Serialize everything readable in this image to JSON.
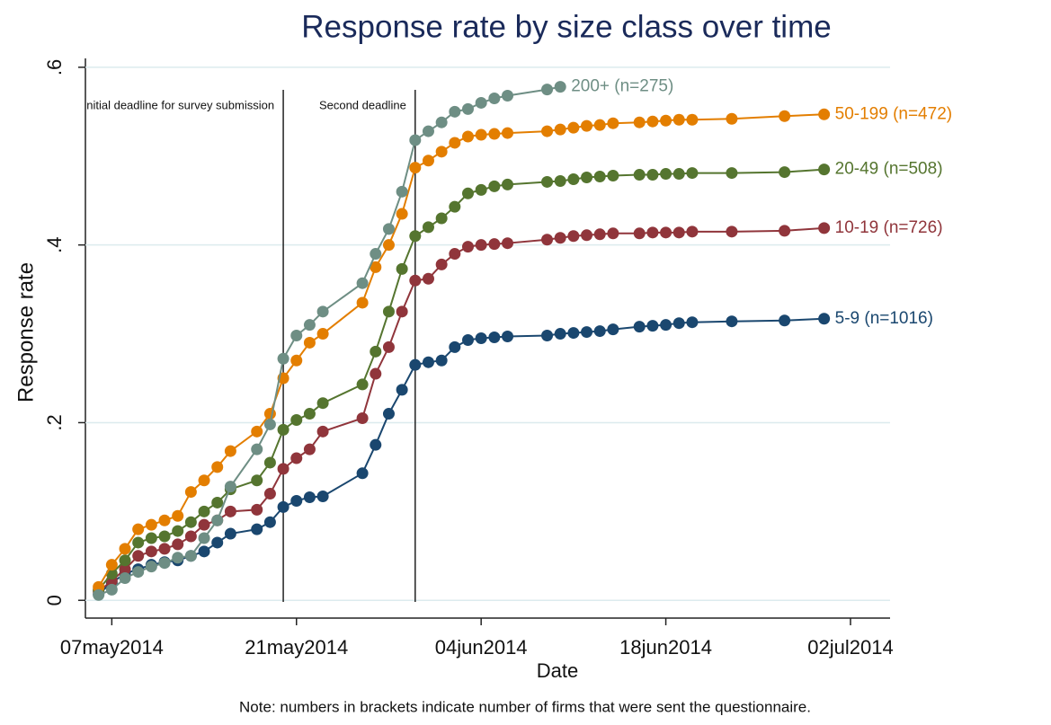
{
  "chart_data": {
    "type": "line",
    "title": "Response rate by size class over time",
    "xlabel": "Date",
    "ylabel": "Response rate",
    "note": "Note: numbers in brackets indicate number of firms that were sent the questionnaire.",
    "xlim": [
      "2014-05-05",
      "2014-07-05"
    ],
    "xticks": [
      {
        "value": "2014-05-07",
        "label": "07may2014"
      },
      {
        "value": "2014-05-21",
        "label": "21may2014"
      },
      {
        "value": "2014-06-04",
        "label": "04jun2014"
      },
      {
        "value": "2014-06-18",
        "label": "18jun2014"
      },
      {
        "value": "2014-07-02",
        "label": "02jul2014"
      }
    ],
    "ylim": [
      -0.02,
      0.61
    ],
    "yticks": [
      0,
      {
        "value": 0.2,
        "label": ".2"
      },
      {
        "value": 0.4,
        "label": ".4"
      },
      {
        "value": 0.6,
        "label": ".6"
      }
    ],
    "grid": true,
    "vlines": [
      {
        "x": "2014-05-20",
        "label": "nitial deadline for survey submission"
      },
      {
        "x": "2014-05-30",
        "label": "Second deadline"
      }
    ],
    "series": [
      {
        "name": "5-9 (n=1016)",
        "color": "#1a476f",
        "x": [
          "2014-05-06",
          "2014-05-07",
          "2014-05-08",
          "2014-05-09",
          "2014-05-10",
          "2014-05-11",
          "2014-05-12",
          "2014-05-13",
          "2014-05-14",
          "2014-05-15",
          "2014-05-16",
          "2014-05-18",
          "2014-05-19",
          "2014-05-20",
          "2014-05-21",
          "2014-05-22",
          "2014-05-23",
          "2014-05-26",
          "2014-05-27",
          "2014-05-28",
          "2014-05-29",
          "2014-05-30",
          "2014-05-31",
          "2014-06-01",
          "2014-06-02",
          "2014-06-03",
          "2014-06-04",
          "2014-06-05",
          "2014-06-06",
          "2014-06-09",
          "2014-06-10",
          "2014-06-11",
          "2014-06-12",
          "2014-06-13",
          "2014-06-14",
          "2014-06-16",
          "2014-06-17",
          "2014-06-18",
          "2014-06-19",
          "2014-06-20",
          "2014-06-23",
          "2014-06-27",
          "2014-06-30"
        ],
        "values": [
          0.007,
          0.02,
          0.03,
          0.035,
          0.04,
          0.043,
          0.045,
          0.05,
          0.055,
          0.065,
          0.075,
          0.08,
          0.088,
          0.105,
          0.112,
          0.116,
          0.117,
          0.143,
          0.175,
          0.21,
          0.237,
          0.265,
          0.268,
          0.27,
          0.285,
          0.293,
          0.295,
          0.296,
          0.297,
          0.298,
          0.3,
          0.301,
          0.302,
          0.303,
          0.305,
          0.308,
          0.309,
          0.31,
          0.312,
          0.313,
          0.314,
          0.315,
          0.317
        ]
      },
      {
        "name": "10-19 (n=726)",
        "color": "#90353b",
        "x": [
          "2014-05-06",
          "2014-05-07",
          "2014-05-08",
          "2014-05-09",
          "2014-05-10",
          "2014-05-11",
          "2014-05-12",
          "2014-05-13",
          "2014-05-14",
          "2014-05-15",
          "2014-05-16",
          "2014-05-18",
          "2014-05-19",
          "2014-05-20",
          "2014-05-21",
          "2014-05-22",
          "2014-05-23",
          "2014-05-26",
          "2014-05-27",
          "2014-05-28",
          "2014-05-29",
          "2014-05-30",
          "2014-05-31",
          "2014-06-01",
          "2014-06-02",
          "2014-06-03",
          "2014-06-04",
          "2014-06-05",
          "2014-06-06",
          "2014-06-09",
          "2014-06-10",
          "2014-06-11",
          "2014-06-12",
          "2014-06-13",
          "2014-06-14",
          "2014-06-16",
          "2014-06-17",
          "2014-06-18",
          "2014-06-19",
          "2014-06-20",
          "2014-06-23",
          "2014-06-27",
          "2014-06-30"
        ],
        "values": [
          0.01,
          0.022,
          0.035,
          0.05,
          0.055,
          0.058,
          0.063,
          0.072,
          0.085,
          0.09,
          0.1,
          0.102,
          0.12,
          0.148,
          0.16,
          0.17,
          0.19,
          0.205,
          0.255,
          0.285,
          0.325,
          0.36,
          0.362,
          0.378,
          0.39,
          0.398,
          0.4,
          0.401,
          0.402,
          0.406,
          0.408,
          0.41,
          0.411,
          0.412,
          0.413,
          0.413,
          0.414,
          0.414,
          0.414,
          0.415,
          0.415,
          0.416,
          0.419
        ]
      },
      {
        "name": "20-49 (n=508)",
        "color": "#55752f",
        "x": [
          "2014-05-06",
          "2014-05-07",
          "2014-05-08",
          "2014-05-09",
          "2014-05-10",
          "2014-05-11",
          "2014-05-12",
          "2014-05-13",
          "2014-05-14",
          "2014-05-15",
          "2014-05-16",
          "2014-05-18",
          "2014-05-19",
          "2014-05-20",
          "2014-05-21",
          "2014-05-22",
          "2014-05-23",
          "2014-05-26",
          "2014-05-27",
          "2014-05-28",
          "2014-05-29",
          "2014-05-30",
          "2014-05-31",
          "2014-06-01",
          "2014-06-02",
          "2014-06-03",
          "2014-06-04",
          "2014-06-05",
          "2014-06-06",
          "2014-06-09",
          "2014-06-10",
          "2014-06-11",
          "2014-06-12",
          "2014-06-13",
          "2014-06-14",
          "2014-06-16",
          "2014-06-17",
          "2014-06-18",
          "2014-06-19",
          "2014-06-20",
          "2014-06-23",
          "2014-06-27",
          "2014-06-30"
        ],
        "values": [
          0.012,
          0.03,
          0.045,
          0.065,
          0.07,
          0.072,
          0.078,
          0.088,
          0.1,
          0.11,
          0.125,
          0.135,
          0.155,
          0.192,
          0.203,
          0.21,
          0.222,
          0.243,
          0.28,
          0.325,
          0.373,
          0.41,
          0.42,
          0.43,
          0.443,
          0.458,
          0.462,
          0.466,
          0.468,
          0.471,
          0.472,
          0.474,
          0.476,
          0.477,
          0.478,
          0.479,
          0.479,
          0.48,
          0.48,
          0.481,
          0.481,
          0.482,
          0.485
        ]
      },
      {
        "name": "50-199 (n=472)",
        "color": "#e37e00",
        "x": [
          "2014-05-06",
          "2014-05-07",
          "2014-05-08",
          "2014-05-09",
          "2014-05-10",
          "2014-05-11",
          "2014-05-12",
          "2014-05-13",
          "2014-05-14",
          "2014-05-15",
          "2014-05-16",
          "2014-05-18",
          "2014-05-19",
          "2014-05-20",
          "2014-05-21",
          "2014-05-22",
          "2014-05-23",
          "2014-05-26",
          "2014-05-27",
          "2014-05-28",
          "2014-05-29",
          "2014-05-30",
          "2014-05-31",
          "2014-06-01",
          "2014-06-02",
          "2014-06-03",
          "2014-06-04",
          "2014-06-05",
          "2014-06-06",
          "2014-06-09",
          "2014-06-10",
          "2014-06-11",
          "2014-06-12",
          "2014-06-13",
          "2014-06-14",
          "2014-06-16",
          "2014-06-17",
          "2014-06-18",
          "2014-06-19",
          "2014-06-20",
          "2014-06-23",
          "2014-06-27",
          "2014-06-30"
        ],
        "values": [
          0.015,
          0.04,
          0.058,
          0.08,
          0.085,
          0.09,
          0.095,
          0.122,
          0.135,
          0.15,
          0.168,
          0.19,
          0.21,
          0.25,
          0.27,
          0.29,
          0.3,
          0.335,
          0.375,
          0.4,
          0.435,
          0.487,
          0.495,
          0.505,
          0.515,
          0.522,
          0.524,
          0.525,
          0.526,
          0.528,
          0.53,
          0.532,
          0.534,
          0.535,
          0.537,
          0.538,
          0.539,
          0.54,
          0.541,
          0.541,
          0.542,
          0.545,
          0.547
        ]
      },
      {
        "name": "200+ (n=275)",
        "color": "#6e8e84",
        "x": [
          "2014-05-06",
          "2014-05-07",
          "2014-05-08",
          "2014-05-09",
          "2014-05-10",
          "2014-05-11",
          "2014-05-12",
          "2014-05-13",
          "2014-05-14",
          "2014-05-15",
          "2014-05-16",
          "2014-05-18",
          "2014-05-19",
          "2014-05-20",
          "2014-05-21",
          "2014-05-22",
          "2014-05-23",
          "2014-05-26",
          "2014-05-27",
          "2014-05-28",
          "2014-05-29",
          "2014-05-30",
          "2014-05-31",
          "2014-06-01",
          "2014-06-02",
          "2014-06-03",
          "2014-06-04",
          "2014-06-05",
          "2014-06-06",
          "2014-06-09",
          "2014-06-10"
        ],
        "values": [
          0.006,
          0.012,
          0.025,
          0.032,
          0.038,
          0.042,
          0.048,
          0.05,
          0.07,
          0.09,
          0.128,
          0.17,
          0.198,
          0.272,
          0.298,
          0.31,
          0.325,
          0.357,
          0.39,
          0.418,
          0.46,
          0.518,
          0.528,
          0.538,
          0.55,
          0.553,
          0.56,
          0.565,
          0.568,
          0.575,
          0.578
        ]
      }
    ]
  }
}
